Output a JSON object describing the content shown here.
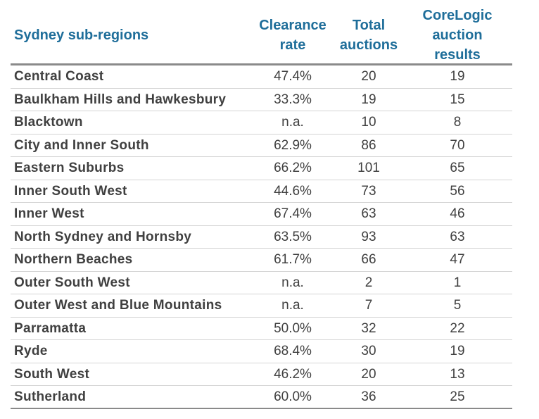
{
  "header": {
    "region": "Sydney sub-regions",
    "clearance": "Clearance\nrate",
    "total": "Total\nauctions",
    "corelogic": "CoreLogic\nauction\nresults"
  },
  "rows": [
    {
      "name": "Central Coast",
      "rate": "47.4%",
      "total": "20",
      "corelogic": "19"
    },
    {
      "name": "Baulkham Hills and Hawkesbury",
      "rate": "33.3%",
      "total": "19",
      "corelogic": "15"
    },
    {
      "name": "Blacktown",
      "rate": "n.a.",
      "total": "10",
      "corelogic": "8"
    },
    {
      "name": "City and Inner South",
      "rate": "62.9%",
      "total": "86",
      "corelogic": "70"
    },
    {
      "name": "Eastern Suburbs",
      "rate": "66.2%",
      "total": "101",
      "corelogic": "65"
    },
    {
      "name": "Inner South West",
      "rate": "44.6%",
      "total": "73",
      "corelogic": "56"
    },
    {
      "name": "Inner West",
      "rate": "67.4%",
      "total": "63",
      "corelogic": "46"
    },
    {
      "name": "North Sydney and Hornsby",
      "rate": "63.5%",
      "total": "93",
      "corelogic": "63"
    },
    {
      "name": "Northern Beaches",
      "rate": "61.7%",
      "total": "66",
      "corelogic": "47"
    },
    {
      "name": "Outer South West",
      "rate": "n.a.",
      "total": "2",
      "corelogic": "1"
    },
    {
      "name": "Outer West and Blue Mountains",
      "rate": "n.a.",
      "total": "7",
      "corelogic": "5"
    },
    {
      "name": "Parramatta",
      "rate": "50.0%",
      "total": "32",
      "corelogic": "22"
    },
    {
      "name": "Ryde",
      "rate": "68.4%",
      "total": "30",
      "corelogic": "19"
    },
    {
      "name": "South West",
      "rate": "46.2%",
      "total": "20",
      "corelogic": "13"
    },
    {
      "name": "Sutherland",
      "rate": "60.0%",
      "total": "36",
      "corelogic": "25"
    }
  ]
}
